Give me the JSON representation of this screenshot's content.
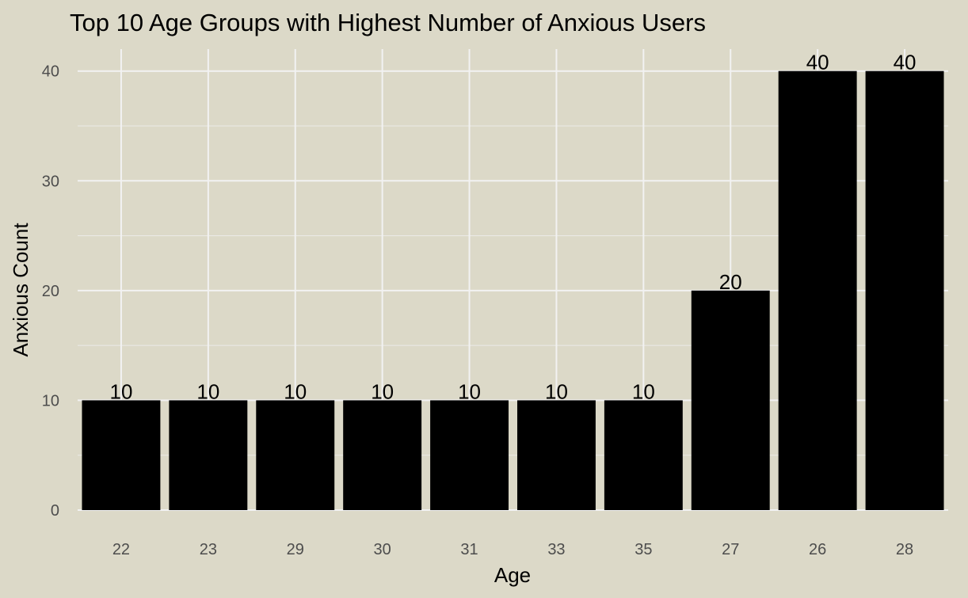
{
  "chart_data": {
    "type": "bar",
    "title": "Top 10 Age Groups with Highest Number of Anxious Users",
    "xlabel": "Age",
    "ylabel": "Anxious Count",
    "categories": [
      "22",
      "23",
      "29",
      "30",
      "31",
      "33",
      "35",
      "27",
      "26",
      "28"
    ],
    "values": [
      10,
      10,
      10,
      10,
      10,
      10,
      10,
      20,
      40,
      40
    ],
    "data_labels": [
      "10",
      "10",
      "10",
      "10",
      "10",
      "10",
      "10",
      "20",
      "40",
      "40"
    ],
    "ylim": [
      0,
      42
    ],
    "yticks": [
      0,
      10,
      20,
      30,
      40
    ],
    "ytick_labels": [
      "0",
      "10",
      "20",
      "30",
      "40"
    ],
    "grid": true,
    "legend": "none",
    "colors": {
      "background": "#dcd9c8",
      "bar": "#000000",
      "grid": "#f2f2f2",
      "tick_text": "#4d4d4d"
    }
  }
}
